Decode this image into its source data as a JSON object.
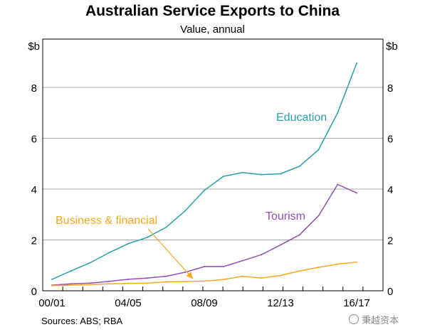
{
  "title": "Australian Service Exports to China",
  "subtitle": "Value, annual",
  "source": "Sources:  ABS; RBA",
  "watermark": "秉越资本",
  "chart_data": {
    "type": "line",
    "title": "Australian Service Exports to China",
    "subtitle": "Value, annual",
    "xlabel": "",
    "ylabel": "$b",
    "y_unit_left": "$b",
    "y_unit_right": "$b",
    "ylim": [
      0,
      9.9
    ],
    "yticks": [
      0,
      2,
      4,
      6,
      8
    ],
    "grid": true,
    "x": [
      "00/01",
      "01/02",
      "02/03",
      "03/04",
      "04/05",
      "05/06",
      "06/07",
      "07/08",
      "08/09",
      "09/10",
      "10/11",
      "11/12",
      "12/13",
      "13/14",
      "14/15",
      "15/16",
      "16/17"
    ],
    "xtick_labels": [
      "00/01",
      "04/05",
      "08/09",
      "12/13",
      "16/17"
    ],
    "series": [
      {
        "name": "Education",
        "color": "#2a9fa8",
        "values": [
          0.45,
          0.78,
          1.1,
          1.5,
          1.85,
          2.1,
          2.5,
          3.15,
          3.95,
          4.5,
          4.65,
          4.57,
          4.6,
          4.9,
          5.55,
          7.0,
          8.95
        ]
      },
      {
        "name": "Tourism",
        "color": "#8f4fb3",
        "values": [
          0.22,
          0.27,
          0.3,
          0.37,
          0.45,
          0.5,
          0.57,
          0.73,
          0.95,
          0.95,
          1.18,
          1.42,
          1.8,
          2.2,
          2.95,
          4.18,
          3.85
        ]
      },
      {
        "name": "Business & financial",
        "color": "#f5a81f",
        "values": [
          0.2,
          0.22,
          0.24,
          0.27,
          0.29,
          0.3,
          0.35,
          0.36,
          0.38,
          0.44,
          0.57,
          0.5,
          0.6,
          0.78,
          0.92,
          1.05,
          1.13
        ]
      }
    ],
    "annotations": [
      {
        "text": "Education",
        "series": "Education",
        "color": "#2a9fa8"
      },
      {
        "text": "Tourism",
        "series": "Tourism",
        "color": "#8f4fb3"
      },
      {
        "text": "Business & financial",
        "series": "Business & financial",
        "color": "#f5a81f",
        "arrow": true
      }
    ]
  }
}
